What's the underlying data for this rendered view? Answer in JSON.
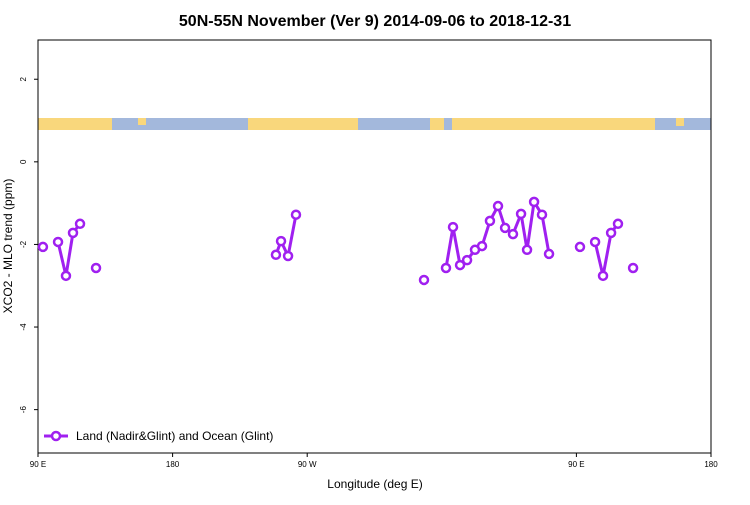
{
  "chart_data": {
    "type": "line",
    "title": "50N-55N November (Ver 9)   2014-09-06 to 2018-12-31",
    "x_label": "Longitude (deg E)",
    "y_label": "XCO2 - MLO trend (ppm)",
    "xlim": [
      90,
      540
    ],
    "ylim": [
      -7.05,
      2.95
    ],
    "xticks": [
      {
        "value": 90,
        "label": "90 E"
      },
      180,
      {
        "value": 270,
        "label": "90 W"
      },
      {
        "value": 450,
        "label": "90 E"
      },
      {
        "value": 540,
        "label": "180"
      }
    ],
    "yticks": [
      -6,
      -4,
      -2,
      0,
      2
    ],
    "legend": "bottom-left",
    "series": [
      {
        "name": "Land (Nadir&Glint) and Ocean (Glint)",
        "color": "#a020f0",
        "x": [
          93.3,
          null,
          103.4,
          108.7,
          113.4,
          118.1,
          null,
          128.8,
          null,
          249.1,
          252.5,
          257.2,
          262.5,
          null,
          348.1,
          null,
          362.8,
          367.5,
          372.2,
          376.9,
          382.2,
          386.9,
          392.2,
          397.6,
          402.3,
          407.6,
          413.0,
          417.0,
          421.7,
          427.0,
          431.7,
          null,
          452.4,
          null,
          462.5,
          467.8,
          473.2,
          477.8,
          null,
          487.9
        ],
        "values": [
          -2.06,
          null,
          -1.94,
          -2.76,
          -1.72,
          -1.5,
          null,
          -2.57,
          null,
          -2.25,
          -1.92,
          -2.28,
          -1.28,
          null,
          -2.86,
          null,
          -2.57,
          -1.58,
          -2.5,
          -2.38,
          -2.13,
          -2.04,
          -1.43,
          -1.07,
          -1.6,
          -1.75,
          -1.26,
          -2.13,
          -0.97,
          -1.28,
          -2.23,
          null,
          -2.06,
          null,
          -1.94,
          -2.76,
          -1.72,
          -1.5,
          null,
          -2.57
        ]
      }
    ]
  }
}
